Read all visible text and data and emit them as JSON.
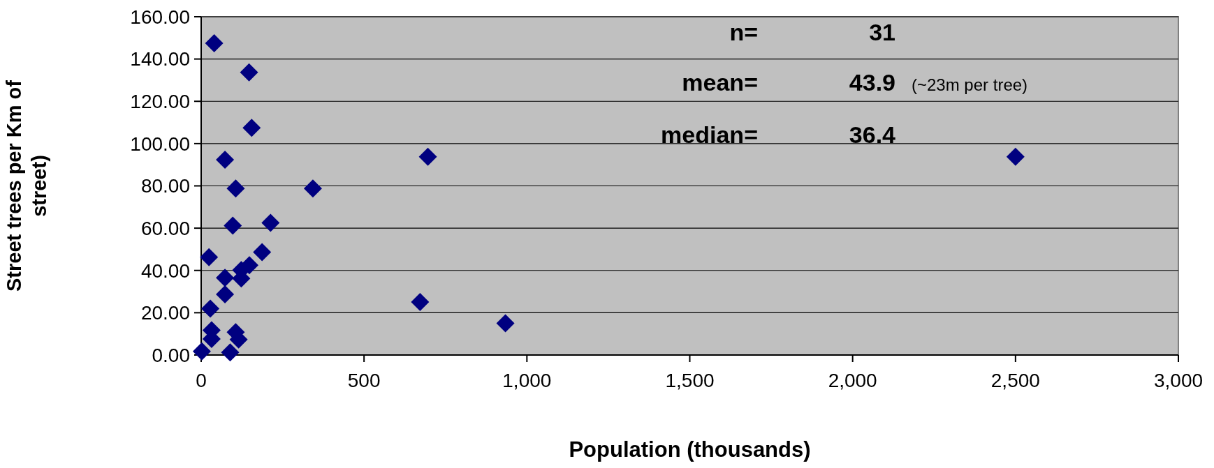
{
  "chart_data": {
    "type": "scatter",
    "xlabel": "Population (thousands)",
    "ylabel": "Street trees per Km of street)",
    "x": [
      40,
      147,
      155,
      73,
      106,
      343,
      696,
      97,
      213,
      24,
      187,
      148,
      123,
      73,
      123,
      73,
      28,
      672,
      934,
      32,
      106,
      32,
      115,
      89,
      2,
      2500
    ],
    "values": [
      147.5,
      133.7,
      107.5,
      92.4,
      78.8,
      78.8,
      93.8,
      61.2,
      62.5,
      46.3,
      48.7,
      42.5,
      40.2,
      36.5,
      36.2,
      28.7,
      21.9,
      25.1,
      15.0,
      11.7,
      10.8,
      7.6,
      7.3,
      1.2,
      1.7,
      93.8
    ],
    "color": "#000080",
    "marker": "diamond",
    "grid": "y",
    "xlim": [
      0,
      3000
    ],
    "xticks": [
      0,
      500,
      {
        "value": 1000,
        "label": "1,000"
      },
      {
        "value": 1500,
        "label": "1,500"
      },
      {
        "value": 2000,
        "label": "2,000"
      },
      {
        "value": 2500,
        "label": "2,500"
      },
      {
        "value": 3000,
        "label": "3,000"
      }
    ],
    "ylim": [
      0,
      160
    ],
    "yticks": [
      {
        "value": 0,
        "label": "0.00"
      },
      {
        "value": 20,
        "label": "20.00"
      },
      {
        "value": 40,
        "label": "40.00"
      },
      {
        "value": 60,
        "label": "60.00"
      },
      {
        "value": 80,
        "label": "80.00"
      },
      {
        "value": 100,
        "label": "100.00"
      },
      {
        "value": 120,
        "label": "120.00"
      },
      {
        "value": 140,
        "label": "140.00"
      },
      {
        "value": 160,
        "label": "160.00"
      }
    ],
    "annotations": [
      "n=",
      "31",
      "mean=",
      "43.9",
      "(~23m per tree)",
      "median=",
      "36.4"
    ]
  }
}
